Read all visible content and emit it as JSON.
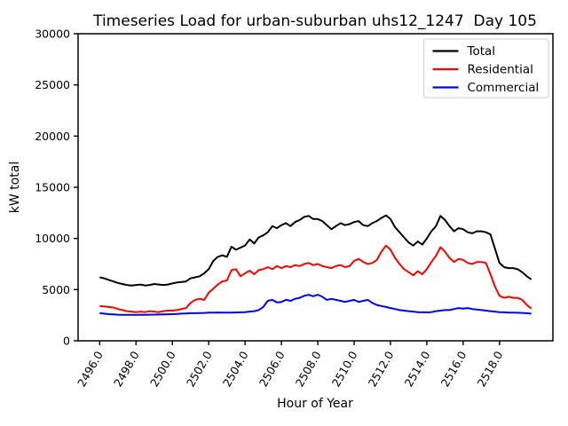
{
  "title": "Timeseries Load for urban-suburban uhs12_1247  Day 105",
  "chart_data": {
    "type": "line",
    "title": "Timeseries Load for urban-suburban uhs12_1247  Day 105",
    "xlabel": "Hour of Year",
    "ylabel": "kW total",
    "xlim": [
      2494.8125,
      2520.9375
    ],
    "ylim": [
      0,
      30000
    ],
    "x_ticks": [
      2496.0,
      2498.0,
      2500.0,
      2502.0,
      2504.0,
      2506.0,
      2508.0,
      2510.0,
      2512.0,
      2514.0,
      2516.0,
      2518.0
    ],
    "y_ticks": [
      0,
      5000,
      10000,
      15000,
      20000,
      25000,
      30000
    ],
    "grid": false,
    "legend_position": "upper right",
    "x_start": 2496.0,
    "x_step": 0.25,
    "x": [
      2496.0,
      2496.25,
      2496.5,
      2496.75,
      2497.0,
      2497.25,
      2497.5,
      2497.75,
      2498.0,
      2498.25,
      2498.5,
      2498.75,
      2499.0,
      2499.25,
      2499.5,
      2499.75,
      2500.0,
      2500.25,
      2500.5,
      2500.75,
      2501.0,
      2501.25,
      2501.5,
      2501.75,
      2502.0,
      2502.25,
      2502.5,
      2502.75,
      2503.0,
      2503.25,
      2503.5,
      2503.75,
      2504.0,
      2504.25,
      2504.5,
      2504.75,
      2505.0,
      2505.25,
      2505.5,
      2505.75,
      2506.0,
      2506.25,
      2506.5,
      2506.75,
      2507.0,
      2507.25,
      2507.5,
      2507.75,
      2508.0,
      2508.25,
      2508.5,
      2508.75,
      2509.0,
      2509.25,
      2509.5,
      2509.75,
      2510.0,
      2510.25,
      2510.5,
      2510.75,
      2511.0,
      2511.25,
      2511.5,
      2511.75,
      2512.0,
      2512.25,
      2512.5,
      2512.75,
      2513.0,
      2513.25,
      2513.5,
      2513.75,
      2514.0,
      2514.25,
      2514.5,
      2514.75,
      2515.0,
      2515.25,
      2515.5,
      2515.75,
      2516.0,
      2516.25,
      2516.5,
      2516.75,
      2517.0,
      2517.25,
      2517.5,
      2517.75,
      2518.0,
      2518.25,
      2518.5,
      2518.75,
      2519.0,
      2519.25,
      2519.5,
      2519.75
    ],
    "series": [
      {
        "name": "Total",
        "color": "#000000",
        "values": [
          6200,
          6100,
          5950,
          5800,
          5650,
          5550,
          5450,
          5400,
          5450,
          5500,
          5400,
          5450,
          5550,
          5500,
          5450,
          5500,
          5600,
          5700,
          5750,
          5800,
          6100,
          6200,
          6300,
          6600,
          7000,
          7800,
          8200,
          8350,
          8200,
          9200,
          8900,
          9100,
          9300,
          9900,
          9500,
          10100,
          10300,
          10600,
          11200,
          11000,
          11300,
          11500,
          11200,
          11600,
          11800,
          12100,
          12200,
          11900,
          11900,
          11700,
          11300,
          10900,
          11200,
          11500,
          11300,
          11400,
          11600,
          11700,
          11300,
          11200,
          11500,
          11700,
          12000,
          12250,
          11900,
          11100,
          10600,
          10100,
          9600,
          9300,
          9700,
          9400,
          10000,
          10700,
          11200,
          12200,
          11800,
          11200,
          10700,
          11000,
          10900,
          10600,
          10500,
          10700,
          10700,
          10600,
          10400,
          9000,
          7600,
          7200,
          7100,
          7100,
          7000,
          6700,
          6300,
          6000
        ]
      },
      {
        "name": "Residential",
        "color": "#ff0000",
        "values": [
          3400,
          3350,
          3300,
          3250,
          3100,
          3000,
          2900,
          2850,
          2800,
          2850,
          2800,
          2900,
          2850,
          2800,
          2900,
          2950,
          2950,
          3000,
          3100,
          3200,
          3700,
          4000,
          4100,
          4000,
          4700,
          5100,
          5500,
          5800,
          5900,
          6900,
          7000,
          6300,
          6600,
          6850,
          6500,
          6900,
          7000,
          7200,
          7000,
          7300,
          7100,
          7300,
          7200,
          7400,
          7300,
          7500,
          7600,
          7400,
          7500,
          7300,
          7200,
          7100,
          7300,
          7400,
          7200,
          7300,
          7800,
          8000,
          7700,
          7500,
          7600,
          7900,
          8700,
          9300,
          8900,
          8100,
          7500,
          7000,
          6700,
          6400,
          6800,
          6500,
          7000,
          7700,
          8300,
          9150,
          8700,
          8100,
          7700,
          8000,
          7900,
          7600,
          7500,
          7700,
          7700,
          7600,
          6500,
          5300,
          4400,
          4200,
          4300,
          4200,
          4200,
          4000,
          3500,
          3150
        ]
      },
      {
        "name": "Commercial",
        "color": "#0000ff",
        "values": [
          2700,
          2650,
          2600,
          2580,
          2550,
          2540,
          2530,
          2530,
          2540,
          2550,
          2540,
          2550,
          2560,
          2570,
          2580,
          2590,
          2600,
          2620,
          2650,
          2670,
          2700,
          2700,
          2710,
          2720,
          2750,
          2760,
          2770,
          2760,
          2750,
          2760,
          2770,
          2780,
          2800,
          2850,
          2900,
          3000,
          3300,
          3900,
          4000,
          3750,
          3800,
          4000,
          3900,
          4100,
          4200,
          4400,
          4500,
          4350,
          4500,
          4300,
          4000,
          4100,
          4000,
          3900,
          3800,
          3900,
          4000,
          3800,
          3900,
          4000,
          3700,
          3500,
          3400,
          3300,
          3200,
          3100,
          3000,
          2950,
          2900,
          2850,
          2800,
          2780,
          2780,
          2800,
          2900,
          2950,
          3000,
          3000,
          3100,
          3200,
          3150,
          3200,
          3100,
          3050,
          3000,
          2950,
          2900,
          2850,
          2800,
          2780,
          2760,
          2750,
          2740,
          2720,
          2700,
          2650
        ]
      }
    ]
  }
}
